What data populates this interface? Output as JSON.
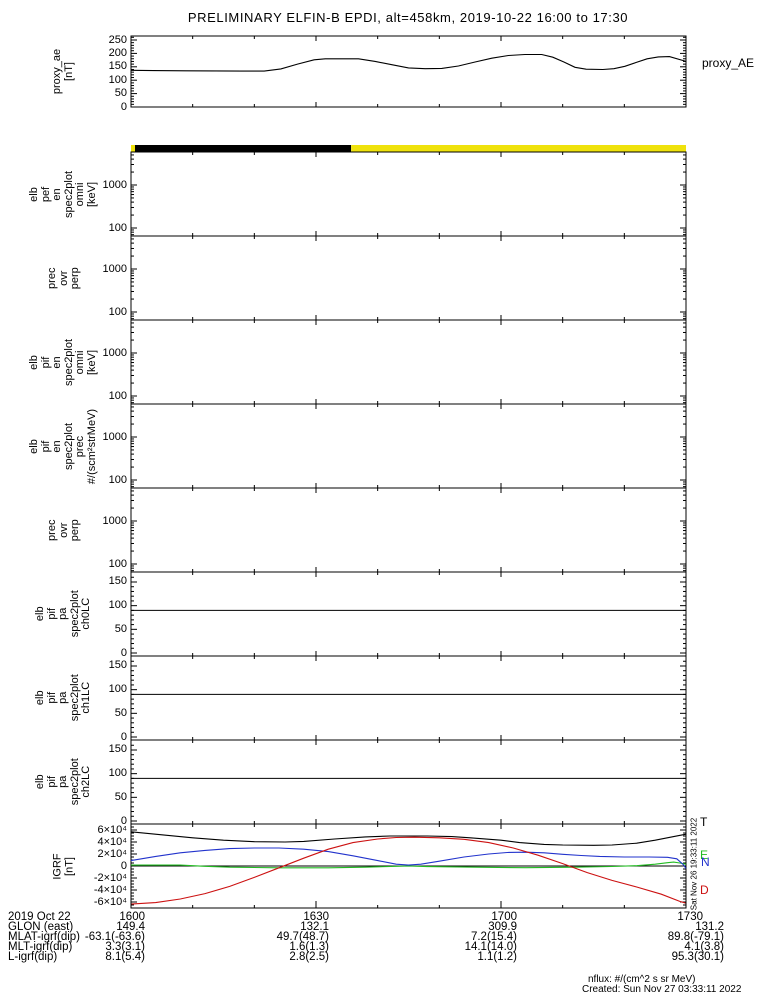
{
  "title": "PRELIMINARY ELFIN-B EPDI, alt=458km, 2019-10-22 16:00 to 17:30",
  "sidebar_stamp": "Sat Nov 26 19:33:11 2022",
  "footer": {
    "line1": "nflux: #/(cm^2 s sr MeV)",
    "line2": "Created: Sun Nov 27 03:33:11 2022"
  },
  "x_axis": {
    "date_label": "2019 Oct 22",
    "tick_labels": [
      "1600",
      "1630",
      "1700",
      "1730"
    ],
    "tick_minutes": [
      0,
      30,
      60,
      90
    ],
    "minor_step_min": 10,
    "range_minutes": [
      0,
      90
    ]
  },
  "table": {
    "row_labels": [
      "GLON (east)",
      "MLAT-igrf(dip)",
      "MLT-igrf(dip)",
      "L-igrf(dip)"
    ],
    "rows": [
      [
        "149.4",
        "132.1",
        "309.9",
        "131.2"
      ],
      [
        "-63.1(-63.6)",
        "49.7(48.7)",
        "7.2(15.4)",
        "89.8(-79.1)"
      ],
      [
        "3.3(3.1)",
        "1.6(1.3)",
        "14.1(14.0)",
        "4.1(3.8)"
      ],
      [
        "8.1(5.4)",
        "2.8(2.5)",
        "1.1(1.2)",
        "95.3(30.1)"
      ]
    ]
  },
  "chart_data": [
    {
      "id": "proxy_ae",
      "type": "line",
      "ylabel_lines": [
        "proxy_ae",
        "[nT]"
      ],
      "right_label": "proxy_AE",
      "ylim": [
        0,
        265
      ],
      "yticks": [
        0,
        50,
        100,
        150,
        200,
        250
      ],
      "y_minor_step": 10,
      "series": [
        {
          "name": "proxy_AE",
          "color": "#000000",
          "x": [
            0,
            3.6,
            9,
            18,
            21.6,
            24.3,
            27,
            29.7,
            31.5,
            36.9,
            39.6,
            42.3,
            45,
            47.7,
            50.4,
            53.1,
            55.8,
            58.5,
            61.2,
            63.9,
            66.6,
            68.4,
            70.2,
            72,
            73.8,
            76.5,
            78.3,
            80.1,
            81.9,
            83.7,
            85.5,
            87.3,
            90
          ],
          "y": [
            137,
            136,
            135,
            134,
            134,
            142,
            160,
            176,
            180,
            180,
            170,
            158,
            146,
            143,
            144,
            153,
            168,
            182,
            192,
            196,
            196,
            186,
            168,
            148,
            141,
            140,
            143,
            152,
            166,
            180,
            187,
            188,
            170
          ]
        }
      ]
    },
    {
      "id": "flag_bar",
      "type": "band",
      "segments": [
        {
          "color": "#EFE20C",
          "t0": 0,
          "t1": 0.65
        },
        {
          "color": "#000000",
          "t0": 0.65,
          "t1": 35.7
        },
        {
          "color": "#EFE20C",
          "t0": 35.7,
          "t1": 90
        }
      ]
    },
    {
      "id": "elb_pef_en_omni",
      "type": "log_empty",
      "ylabel_lines": [
        "elb",
        "pef",
        "en",
        "spec2plot",
        "omni",
        "[keV]"
      ],
      "ytick_labels": [
        "1000",
        "100"
      ],
      "ytick_values": [
        1000,
        100
      ],
      "ylog_range": [
        65,
        5850
      ]
    },
    {
      "id": "pef_prec_ovr_perp",
      "type": "log_empty",
      "ylabel_lines": [
        "prec",
        "ovr",
        "perp"
      ],
      "ytick_labels": [
        "1000",
        "100"
      ],
      "ytick_values": [
        1000,
        100
      ],
      "ylog_range": [
        65,
        5850
      ]
    },
    {
      "id": "elb_pif_en_omni",
      "type": "log_empty",
      "ylabel_lines": [
        "elb",
        "pif",
        "en",
        "spec2plot",
        "omni",
        "[keV]"
      ],
      "ytick_labels": [
        "1000",
        "100"
      ],
      "ytick_values": [
        1000,
        100
      ],
      "ylog_range": [
        65,
        5850
      ]
    },
    {
      "id": "elb_pif_en_prec",
      "type": "log_empty",
      "ylabel_lines": [
        "elb",
        "pif",
        "en",
        "spec2plot",
        "prec",
        "#/(scm²strMeV)"
      ],
      "ytick_labels": [
        "1000",
        "100"
      ],
      "ytick_values": [
        1000,
        100
      ],
      "ylog_range": [
        65,
        5850
      ]
    },
    {
      "id": "pif_prec_ovr_perp",
      "type": "log_empty",
      "ylabel_lines": [
        "prec",
        "ovr",
        "perp"
      ],
      "ytick_labels": [
        "1000",
        "100"
      ],
      "ytick_values": [
        1000,
        100
      ],
      "ylog_range": [
        65,
        5850
      ]
    },
    {
      "id": "ch0LC",
      "type": "linear_empty",
      "ylabel_lines": [
        "elb",
        "pif",
        "pa",
        "spec2plot",
        "ch0LC"
      ],
      "yticks": [
        0,
        50,
        100,
        150
      ],
      "ylim": [
        0,
        171
      ],
      "y_minor_step": 10,
      "hline": 90
    },
    {
      "id": "ch1LC",
      "type": "linear_empty",
      "ylabel_lines": [
        "elb",
        "pif",
        "pa",
        "spec2plot",
        "ch1LC"
      ],
      "yticks": [
        0,
        50,
        100,
        150
      ],
      "ylim": [
        0,
        171
      ],
      "y_minor_step": 10,
      "hline": 90
    },
    {
      "id": "ch2LC",
      "type": "linear_empty",
      "ylabel_lines": [
        "elb",
        "pif",
        "pa",
        "spec2plot",
        "ch2LC"
      ],
      "yticks": [
        0,
        50,
        100,
        150
      ],
      "ylim": [
        0,
        171
      ],
      "y_minor_step": 10,
      "hline": 90
    },
    {
      "id": "igrf",
      "type": "multiline",
      "ylabel_lines": [
        "IGRF",
        "[nT]"
      ],
      "ylim": [
        -70000,
        70000
      ],
      "ytick_labels": [
        "6×10⁴",
        "4×10⁴",
        "2×10⁴",
        "0",
        "-2×10⁴",
        "-4×10⁴",
        "-6×10⁴"
      ],
      "ytick_values": [
        60000,
        40000,
        20000,
        0,
        -20000,
        -40000,
        -60000
      ],
      "y_minor_step": 5000,
      "zero_line": true,
      "series": [
        {
          "name": "E",
          "color": "#22BB22",
          "x": [
            0,
            8,
            12,
            16,
            24,
            32,
            38,
            43,
            45,
            48,
            56,
            64,
            72,
            78,
            82,
            85,
            87,
            88,
            89,
            90
          ],
          "y": [
            1500,
            1500,
            -500,
            -2000,
            -3000,
            -3000,
            -2000,
            -500,
            0,
            -1000,
            -2000,
            -2800,
            -2000,
            -800,
            500,
            3000,
            5500,
            6500,
            5000,
            3000
          ]
        },
        {
          "name": "N",
          "color": "#2233CC",
          "x": [
            0,
            4,
            8,
            12,
            16,
            20,
            24,
            28,
            32,
            36,
            40,
            43,
            45,
            47,
            50,
            54,
            58,
            61,
            64,
            67,
            70,
            73,
            76,
            80,
            84,
            87,
            88.5,
            89.5,
            90
          ],
          "y": [
            9000,
            16000,
            22000,
            26000,
            29000,
            30000,
            30000,
            28000,
            24000,
            17000,
            9000,
            3000,
            1500,
            3000,
            8000,
            15000,
            20000,
            22500,
            23000,
            22000,
            19500,
            17500,
            16000,
            15000,
            15000,
            14500,
            12000,
            3000,
            -4000
          ]
        },
        {
          "name": "T",
          "color": "#000000",
          "x": [
            0,
            5,
            10,
            15,
            20,
            25,
            28,
            33,
            38,
            42,
            48,
            52,
            55,
            60,
            63,
            67,
            70,
            75,
            78,
            82,
            85,
            88,
            90
          ],
          "y": [
            57000,
            52000,
            47000,
            43000,
            40500,
            40000,
            41000,
            45000,
            48500,
            50000,
            50000,
            49000,
            47000,
            43000,
            39000,
            36000,
            35000,
            34500,
            35000,
            38000,
            43000,
            49000,
            53000
          ]
        },
        {
          "name": "D",
          "color": "#CC1111",
          "x": [
            0,
            4,
            8,
            12,
            16,
            20,
            24,
            28,
            32,
            36,
            40,
            43,
            46,
            50,
            54,
            58,
            62,
            66,
            70,
            74,
            78,
            82,
            86,
            89,
            90
          ],
          "y": [
            -63500,
            -61000,
            -55000,
            -46000,
            -34000,
            -19000,
            -3000,
            13000,
            28000,
            39000,
            45000,
            47500,
            48000,
            47000,
            44500,
            39000,
            30000,
            18000,
            4000,
            -11000,
            -24000,
            -35000,
            -47000,
            -59000,
            -62000
          ]
        }
      ],
      "series_labels": [
        {
          "text": "T",
          "color": "#000000"
        },
        {
          "text": "E",
          "color": "#22BB22"
        },
        {
          "text": "N",
          "color": "#2233CC"
        },
        {
          "text": "D",
          "color": "#CC1111"
        }
      ]
    }
  ]
}
